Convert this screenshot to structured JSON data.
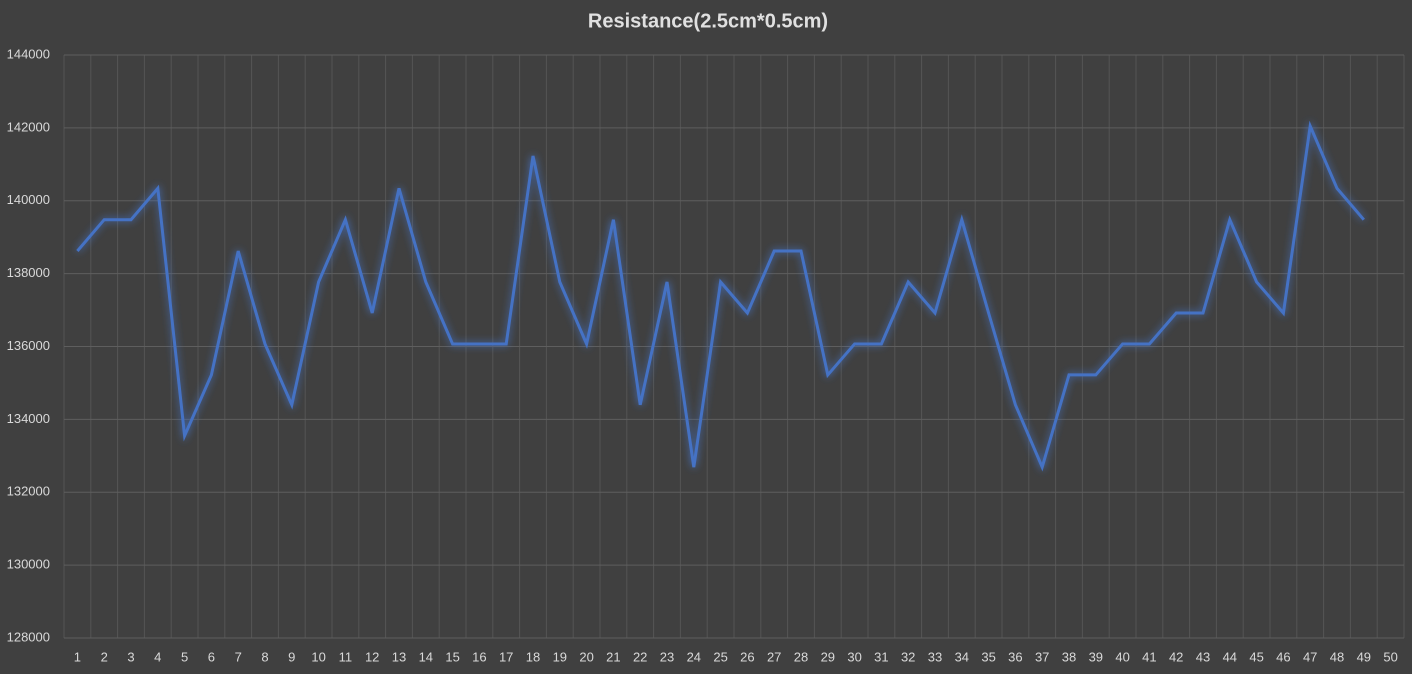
{
  "chart_data": {
    "type": "line",
    "title": "Resistance(2.5cm*0.5cm)",
    "categories": [
      "1",
      "2",
      "3",
      "4",
      "5",
      "6",
      "7",
      "8",
      "9",
      "10",
      "11",
      "12",
      "13",
      "14",
      "15",
      "16",
      "17",
      "18",
      "19",
      "20",
      "21",
      "22",
      "23",
      "24",
      "25",
      "26",
      "27",
      "28",
      "29",
      "30",
      "31",
      "32",
      "33",
      "34",
      "35",
      "36",
      "37",
      "38",
      "39",
      "40",
      "41",
      "42",
      "43",
      "44",
      "45",
      "46",
      "47",
      "48",
      "49",
      "50"
    ],
    "series": [
      {
        "name": "Resistance",
        "color": "#4472c4",
        "values": [
          138620,
          139480,
          139480,
          140340,
          133550,
          135220,
          138620,
          136070,
          134400,
          137770,
          139480,
          136920,
          140340,
          137770,
          136070,
          136070,
          136070,
          141230,
          137770,
          136070,
          139480,
          134400,
          137770,
          132690,
          137770,
          136920,
          138620,
          138620,
          135220,
          136070,
          136070,
          137770,
          136920,
          139480,
          136920,
          134400,
          132690,
          135220,
          135220,
          136070,
          136070,
          136920,
          136920,
          139480,
          137770,
          136920,
          142050,
          140340,
          139480,
          null
        ]
      }
    ],
    "ylim": [
      128000,
      144000
    ],
    "yticks": [
      128000,
      130000,
      132000,
      134000,
      136000,
      138000,
      140000,
      142000,
      144000
    ],
    "grid": true
  }
}
